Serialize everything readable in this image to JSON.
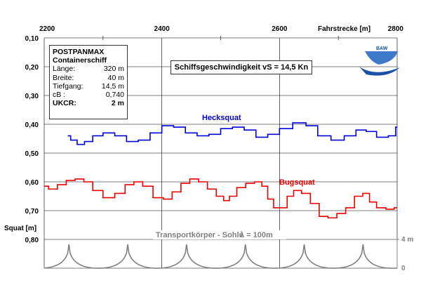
{
  "info": {
    "ship_type": "POSTPANMAX",
    "ship_kind": "Containerschiff",
    "rows": [
      {
        "label": "Länge:",
        "value": "320 m"
      },
      {
        "label": "Breite:",
        "value": "40 m"
      },
      {
        "label": "Tiefgang:",
        "value": "14,5 m"
      },
      {
        "label": "cB :",
        "value": "0,740"
      },
      {
        "label": "UKCR:",
        "value": "2 m"
      }
    ]
  },
  "speed_label": "Schiffsgeschwindigkeit vS = 14,5 Kn",
  "logo_text": "BAW",
  "colors": {
    "heck": "#0000dd",
    "bug": "#ee0000",
    "sohle": "#808080",
    "grid": "#000000"
  },
  "chart_data": {
    "type": "line",
    "xlabel": "Fahrstrecke [m]",
    "ylabel": "Squat [m]",
    "xlim": [
      2200,
      2800
    ],
    "x_ticks": [
      "2200",
      "2400",
      "2600",
      "2800"
    ],
    "ylim": [
      0.1,
      0.9
    ],
    "y_ticks": [
      "0,10",
      "0,20",
      "0,30",
      "0,40",
      "0,50",
      "0,60",
      "0,70",
      "0,80"
    ],
    "series": [
      {
        "name": "Hecksquat",
        "color": "#0000dd",
        "points": [
          [
            2240,
            0.44
          ],
          [
            2250,
            0.455
          ],
          [
            2262,
            0.47
          ],
          [
            2275,
            0.46
          ],
          [
            2290,
            0.44
          ],
          [
            2310,
            0.43
          ],
          [
            2330,
            0.44
          ],
          [
            2350,
            0.46
          ],
          [
            2370,
            0.455
          ],
          [
            2390,
            0.43
          ],
          [
            2410,
            0.405
          ],
          [
            2430,
            0.41
          ],
          [
            2450,
            0.43
          ],
          [
            2470,
            0.44
          ],
          [
            2490,
            0.435
          ],
          [
            2510,
            0.415
          ],
          [
            2530,
            0.41
          ],
          [
            2550,
            0.42
          ],
          [
            2570,
            0.445
          ],
          [
            2590,
            0.435
          ],
          [
            2610,
            0.415
          ],
          [
            2635,
            0.395
          ],
          [
            2655,
            0.405
          ],
          [
            2675,
            0.44
          ],
          [
            2700,
            0.455
          ],
          [
            2720,
            0.44
          ],
          [
            2740,
            0.42
          ],
          [
            2755,
            0.425
          ],
          [
            2775,
            0.445
          ],
          [
            2795,
            0.44
          ],
          [
            2800,
            0.41
          ]
        ]
      },
      {
        "name": "Bugsquat",
        "color": "#ee0000",
        "points": [
          [
            2200,
            0.615
          ],
          [
            2215,
            0.625
          ],
          [
            2230,
            0.61
          ],
          [
            2245,
            0.595
          ],
          [
            2260,
            0.59
          ],
          [
            2275,
            0.6
          ],
          [
            2290,
            0.63
          ],
          [
            2310,
            0.655
          ],
          [
            2330,
            0.64
          ],
          [
            2345,
            0.61
          ],
          [
            2360,
            0.6
          ],
          [
            2375,
            0.615
          ],
          [
            2395,
            0.655
          ],
          [
            2410,
            0.66
          ],
          [
            2425,
            0.635
          ],
          [
            2440,
            0.605
          ],
          [
            2455,
            0.59
          ],
          [
            2470,
            0.6
          ],
          [
            2485,
            0.625
          ],
          [
            2500,
            0.65
          ],
          [
            2510,
            0.665
          ],
          [
            2520,
            0.65
          ],
          [
            2535,
            0.62
          ],
          [
            2550,
            0.605
          ],
          [
            2565,
            0.6
          ],
          [
            2575,
            0.615
          ],
          [
            2585,
            0.66
          ],
          [
            2595,
            0.69
          ],
          [
            2608,
            0.69
          ],
          [
            2618,
            0.65
          ],
          [
            2630,
            0.63
          ],
          [
            2645,
            0.64
          ],
          [
            2660,
            0.675
          ],
          [
            2675,
            0.72
          ],
          [
            2690,
            0.725
          ],
          [
            2705,
            0.71
          ],
          [
            2720,
            0.69
          ],
          [
            2735,
            0.65
          ],
          [
            2748,
            0.64
          ],
          [
            2758,
            0.67
          ],
          [
            2772,
            0.69
          ],
          [
            2790,
            0.695
          ],
          [
            2800,
            0.69
          ]
        ]
      }
    ],
    "annotations": {
      "heck_label": "Hecksquat",
      "bug_label": "Bugsquat",
      "sohle_label": "Transportkörper - Sohle",
      "lambda_label": "λ = 100m",
      "right_axis_top": "4 m",
      "right_axis_bottom": "0"
    },
    "sohle": {
      "wavelength_m": 100,
      "height_m": 4,
      "crests": [
        2242,
        2342,
        2442,
        2542,
        2642,
        2742
      ]
    }
  }
}
